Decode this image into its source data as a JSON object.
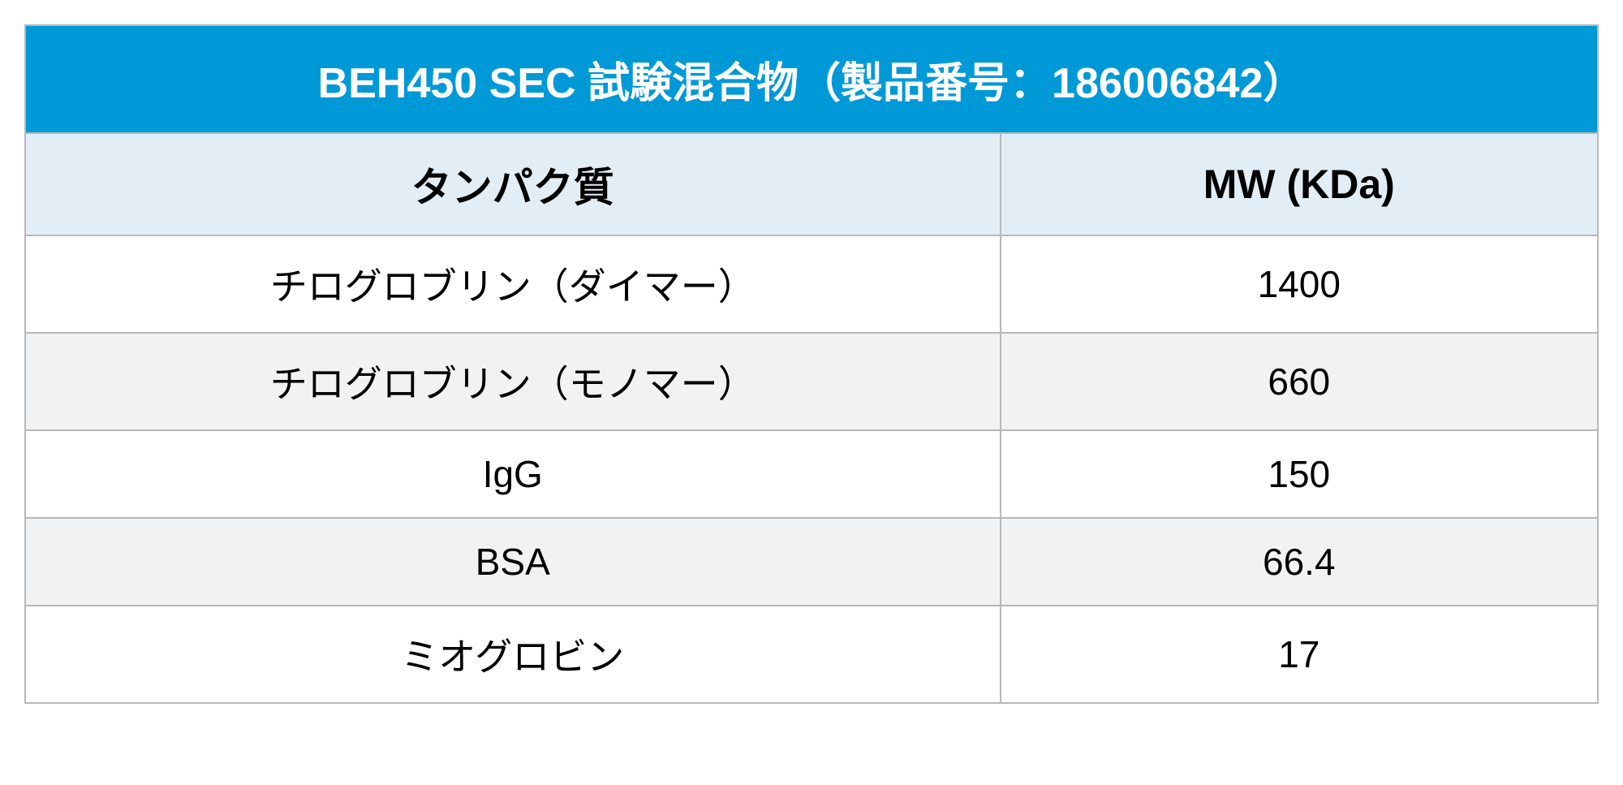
{
  "table": {
    "type": "table",
    "title": "BEH450 SEC 試験混合物（製品番号：186006842）",
    "columns": [
      "タンパク質",
      "MW (KDa)"
    ],
    "column_widths": [
      "62%",
      "38%"
    ],
    "rows": [
      [
        "チログロブリン（ダイマー）",
        "1400"
      ],
      [
        "チログロブリン（モノマー）",
        "660"
      ],
      [
        "IgG",
        "150"
      ],
      [
        "BSA",
        "66.4"
      ],
      [
        "ミオグロビン",
        "17"
      ]
    ],
    "colors": {
      "title_bg": "#0099d8",
      "title_text": "#ffffff",
      "header_bg": "#e3edf5",
      "header_text": "#000000",
      "row_odd_bg": "#ffffff",
      "row_even_bg": "#f1f2f3",
      "cell_text": "#000000",
      "border": "#b8b8b8",
      "page_bg": "#ffffff"
    },
    "typography": {
      "title_fontsize": 52,
      "header_fontsize": 50,
      "cell_fontsize": 46,
      "title_fontweight": "bold",
      "header_fontweight": "bold",
      "cell_fontweight": "normal",
      "text_align": "center"
    },
    "border_width": 2
  }
}
